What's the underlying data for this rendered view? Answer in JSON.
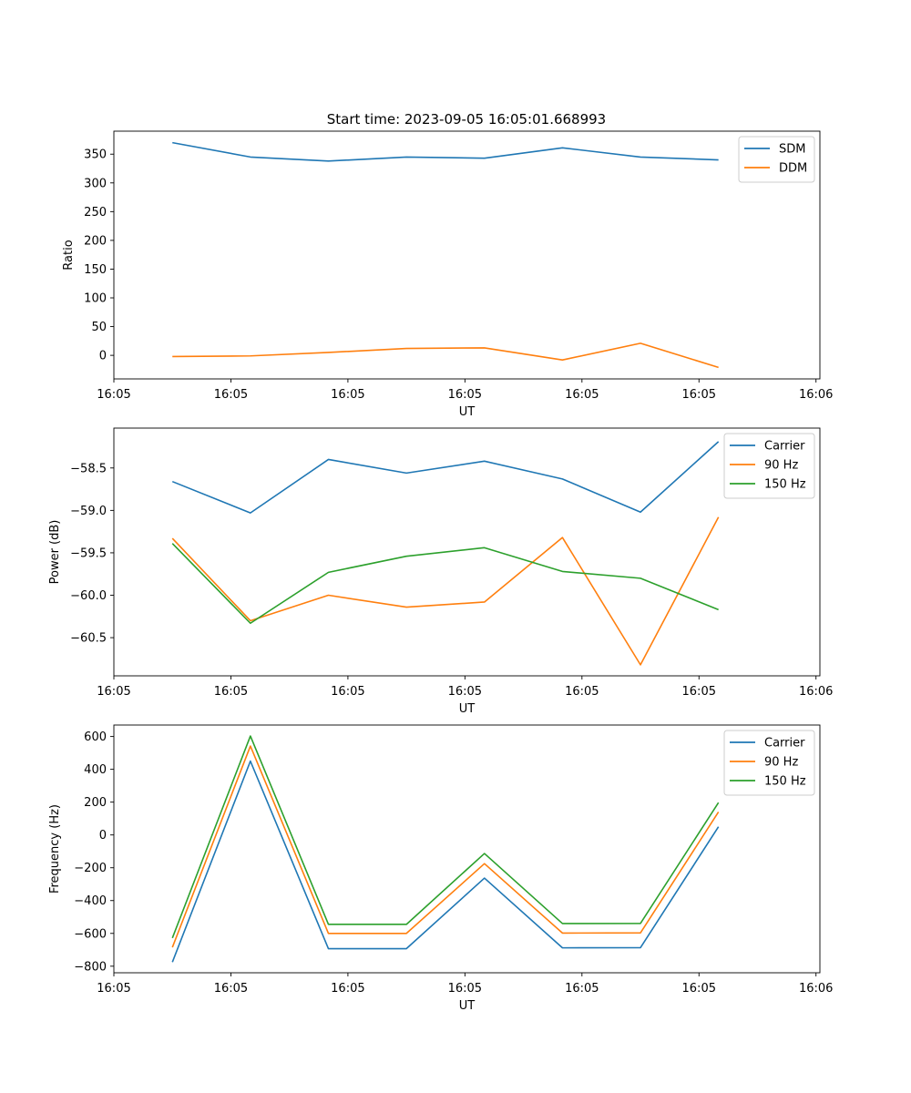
{
  "title": "Start time: 2023-09-05 16:05:01.668993",
  "colors": {
    "blue": "#1f77b4",
    "orange": "#ff7f0e",
    "green": "#2ca02c"
  },
  "chart_data": [
    {
      "type": "line",
      "title": "Start time: 2023-09-05 16:05:01.668993",
      "xlabel": "UT",
      "ylabel": "Ratio",
      "x": [
        1,
        2,
        3,
        4,
        5,
        6,
        7,
        8
      ],
      "xlim": [
        0.25,
        9.3
      ],
      "xticks": [
        0.25,
        1.75,
        3.25,
        4.75,
        6.25,
        7.75,
        9.25
      ],
      "xtick_labels": [
        "16:05",
        "16:05",
        "16:05",
        "16:05",
        "16:05",
        "16:05",
        "16:06"
      ],
      "ylim": [
        -41,
        390
      ],
      "yticks": [
        0,
        50,
        100,
        150,
        200,
        250,
        300,
        350
      ],
      "ytick_labels": [
        "0",
        "50",
        "100",
        "150",
        "200",
        "250",
        "300",
        "350"
      ],
      "legend": "top-right",
      "series": [
        {
          "name": "SDM",
          "color": "blue",
          "values": [
            370,
            345,
            338,
            345,
            343,
            361,
            345,
            340
          ]
        },
        {
          "name": "DDM",
          "color": "orange",
          "values": [
            -2,
            -1,
            5,
            12,
            13,
            -8,
            21,
            -21
          ]
        }
      ]
    },
    {
      "type": "line",
      "title": "",
      "xlabel": "UT",
      "ylabel": "Power (dB)",
      "x": [
        1,
        2,
        3,
        4,
        5,
        6,
        7,
        8
      ],
      "xlim": [
        0.25,
        9.3
      ],
      "xticks": [
        0.25,
        1.75,
        3.25,
        4.75,
        6.25,
        7.75,
        9.25
      ],
      "xtick_labels": [
        "16:05",
        "16:05",
        "16:05",
        "16:05",
        "16:05",
        "16:05",
        "16:06"
      ],
      "ylim": [
        -60.95,
        -58.03
      ],
      "yticks": [
        -60.5,
        -60.0,
        -59.5,
        -59.0,
        -58.5
      ],
      "ytick_labels": [
        "−60.5",
        "−60.0",
        "−59.5",
        "−59.0",
        "−58.5"
      ],
      "legend": "top-right",
      "series": [
        {
          "name": "Carrier",
          "color": "blue",
          "values": [
            -58.66,
            -59.03,
            -58.4,
            -58.56,
            -58.42,
            -58.63,
            -59.02,
            -58.19
          ]
        },
        {
          "name": "90 Hz",
          "color": "orange",
          "values": [
            -59.33,
            -60.3,
            -60.0,
            -60.14,
            -60.08,
            -59.32,
            -60.82,
            -59.08
          ]
        },
        {
          "name": "150 Hz",
          "color": "green",
          "values": [
            -59.39,
            -60.33,
            -59.73,
            -59.54,
            -59.44,
            -59.72,
            -59.8,
            -60.17
          ]
        }
      ]
    },
    {
      "type": "line",
      "title": "",
      "xlabel": "UT",
      "ylabel": "Frequency (Hz)",
      "x": [
        1,
        2,
        3,
        4,
        5,
        6,
        7,
        8
      ],
      "xlim": [
        0.25,
        9.3
      ],
      "xticks": [
        0.25,
        1.75,
        3.25,
        4.75,
        6.25,
        7.75,
        9.25
      ],
      "xtick_labels": [
        "16:05",
        "16:05",
        "16:05",
        "16:05",
        "16:05",
        "16:05",
        "16:06"
      ],
      "ylim": [
        -840,
        670
      ],
      "yticks": [
        -800,
        -600,
        -400,
        -200,
        0,
        200,
        400,
        600
      ],
      "ytick_labels": [
        "−800",
        "−600",
        "−400",
        "−200",
        "0",
        "200",
        "400",
        "600"
      ],
      "legend": "top-right",
      "series": [
        {
          "name": "Carrier",
          "color": "blue",
          "values": [
            -775,
            450,
            -693,
            -693,
            -263,
            -688,
            -687,
            50
          ]
        },
        {
          "name": "90 Hz",
          "color": "orange",
          "values": [
            -685,
            542,
            -600,
            -600,
            -175,
            -598,
            -597,
            140
          ]
        },
        {
          "name": "150 Hz",
          "color": "green",
          "values": [
            -628,
            603,
            -545,
            -545,
            -113,
            -540,
            -539,
            197
          ]
        }
      ]
    }
  ]
}
